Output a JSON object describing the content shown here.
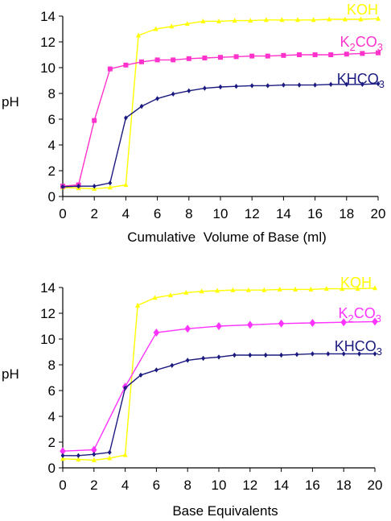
{
  "chart_data": [
    {
      "type": "line",
      "xlabel": "Cumulative  Volume of Base (ml)",
      "ylabel": "pH",
      "xlim": [
        0,
        20
      ],
      "ylim": [
        0,
        14
      ],
      "xticks": [
        0,
        2,
        4,
        6,
        8,
        10,
        12,
        14,
        16,
        18,
        20
      ],
      "yticks": [
        0,
        2,
        4,
        6,
        8,
        10,
        12,
        14
      ],
      "grid": false,
      "legend": "inline labels at right end of each series",
      "series": [
        {
          "name": "KOH",
          "color": "#ffff00",
          "marker": "triangle",
          "x": [
            0,
            1,
            2,
            3,
            4,
            4.8,
            5.9,
            6.9,
            7.9,
            8.9,
            9.9,
            10.9,
            11.9,
            12.9,
            13.9,
            14.9,
            15.9,
            16.9,
            17.9,
            18.9,
            20
          ],
          "y": [
            0.7,
            0.65,
            0.6,
            0.7,
            0.9,
            12.5,
            13.0,
            13.2,
            13.4,
            13.6,
            13.6,
            13.65,
            13.65,
            13.7,
            13.7,
            13.7,
            13.7,
            13.75,
            13.75,
            13.75,
            13.8
          ]
        },
        {
          "name": "K2CO3",
          "label_parts": [
            "K",
            "2",
            "CO",
            "3"
          ],
          "color": "#ff33cc",
          "marker": "square",
          "x": [
            0,
            1,
            2,
            3,
            4,
            5,
            6,
            7,
            8,
            9,
            10,
            11,
            12,
            13,
            14,
            15,
            16,
            17,
            18,
            19,
            20
          ],
          "y": [
            0.8,
            0.9,
            5.9,
            9.9,
            10.2,
            10.45,
            10.6,
            10.6,
            10.7,
            10.75,
            10.8,
            10.85,
            10.9,
            10.9,
            10.95,
            11.0,
            11.0,
            11.0,
            11.05,
            11.1,
            11.15
          ]
        },
        {
          "name": "KHCO3",
          "label_parts": [
            "KHCO",
            "3"
          ],
          "color": "#1a1a80",
          "marker": "diamond",
          "x": [
            0,
            1,
            2,
            3,
            4,
            5,
            6,
            7,
            8,
            9,
            10,
            11,
            12,
            13,
            14,
            15,
            16,
            17,
            18,
            19,
            20
          ],
          "y": [
            0.75,
            0.8,
            0.8,
            1.05,
            6.1,
            7.0,
            7.6,
            7.95,
            8.2,
            8.4,
            8.5,
            8.55,
            8.6,
            8.6,
            8.65,
            8.65,
            8.65,
            8.7,
            8.7,
            8.7,
            8.75
          ]
        }
      ]
    },
    {
      "type": "line",
      "xlabel": "Base Equivalents",
      "ylabel": "pH",
      "xlim": [
        0,
        20
      ],
      "ylim": [
        0,
        14
      ],
      "xticks": [
        0,
        2,
        4,
        6,
        8,
        10,
        12,
        14,
        16,
        18,
        20
      ],
      "yticks": [
        0,
        2,
        4,
        6,
        8,
        10,
        12,
        14
      ],
      "grid": false,
      "legend": "inline labels at right end of each series",
      "series": [
        {
          "name": "KOH",
          "color": "#ffff00",
          "marker": "triangle",
          "x": [
            0,
            1,
            2,
            3,
            4,
            4.8,
            5.9,
            6.9,
            7.9,
            8.9,
            9.9,
            10.9,
            11.9,
            12.9,
            13.9,
            14.9,
            15.9,
            16.9,
            17.9,
            18.9,
            20
          ],
          "y": [
            0.7,
            0.65,
            0.6,
            0.75,
            1.0,
            12.6,
            13.2,
            13.4,
            13.6,
            13.7,
            13.75,
            13.8,
            13.8,
            13.8,
            13.85,
            13.85,
            13.85,
            13.9,
            13.9,
            13.9,
            13.95
          ]
        },
        {
          "name": "K2CO3",
          "label_parts": [
            "K",
            "2",
            "CO",
            "3"
          ],
          "color": "#ff33ff",
          "marker": "diamond",
          "x": [
            0,
            2,
            4,
            6,
            8,
            10,
            12,
            14,
            16,
            18,
            20
          ],
          "y": [
            1.3,
            1.4,
            6.3,
            10.5,
            10.8,
            11.0,
            11.1,
            11.2,
            11.25,
            11.3,
            11.35
          ]
        },
        {
          "name": "KHCO3",
          "label_parts": [
            "KHCO",
            "3"
          ],
          "color": "#1a1a80",
          "marker": "diamond",
          "x": [
            0,
            1,
            2,
            3,
            4,
            5,
            6,
            7,
            8,
            9,
            10,
            11,
            12,
            13,
            14,
            15,
            16,
            17,
            18,
            19,
            20
          ],
          "y": [
            0.95,
            0.95,
            1.05,
            1.2,
            6.2,
            7.2,
            7.6,
            7.95,
            8.35,
            8.5,
            8.6,
            8.75,
            8.75,
            8.75,
            8.75,
            8.8,
            8.85,
            8.85,
            8.85,
            8.85,
            8.85
          ]
        }
      ]
    }
  ]
}
